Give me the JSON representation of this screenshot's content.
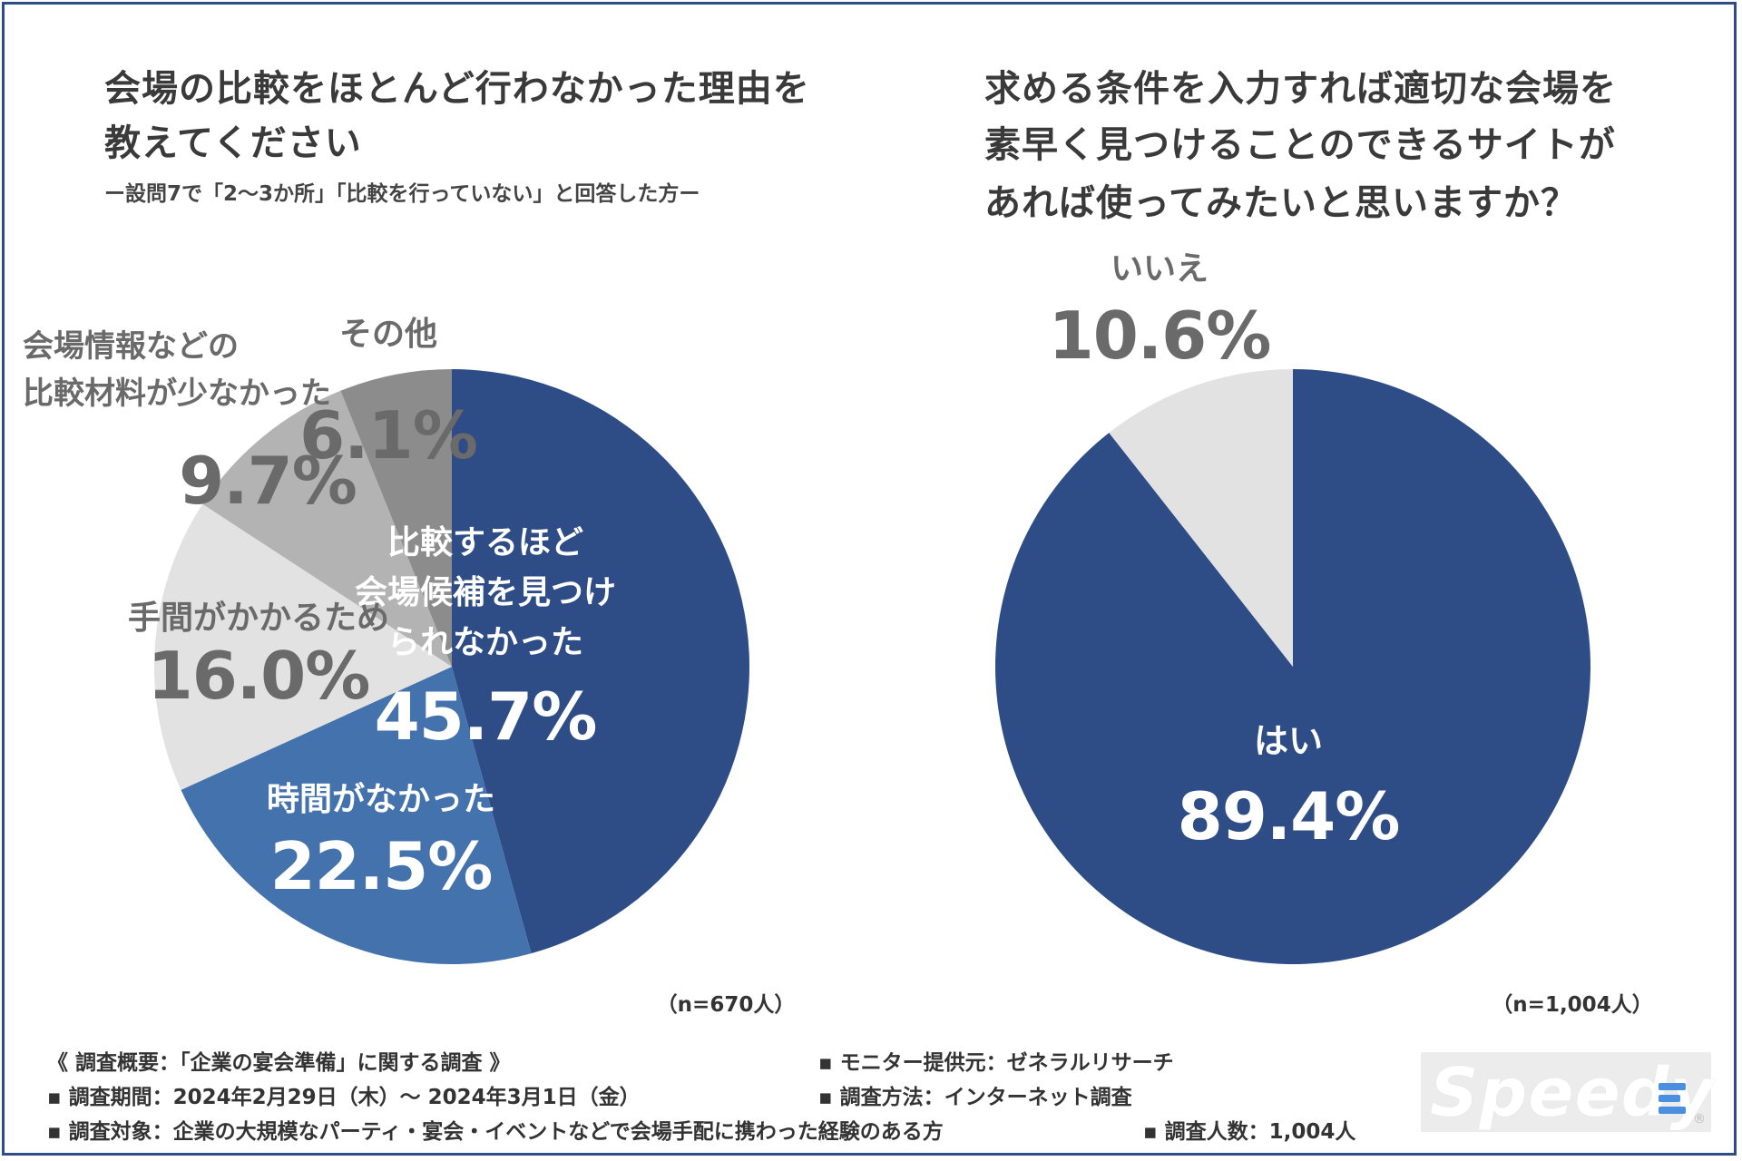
{
  "left": {
    "title_line1": "会場の比較をほとんど行わなかった理由を",
    "title_line2": "教えてください",
    "subtitle": "ー設問7で「2〜3か所」「比較を行っていない」と回答した方ー",
    "n_label": "（n=670人）"
  },
  "right": {
    "title_line1": "求める条件を入力すれば適切な会場を",
    "title_line2": "素早く見つけることのできるサイトが",
    "title_line3": "あれば使ってみたいと思いますか？",
    "n_label": "（n=1,004人）"
  },
  "footer": {
    "overview": "《 調査概要：「企業の宴会準備」に関する調査 》",
    "period": "▪ 調査期間：2024年2月29日（木）〜 2024年3月1日（金）",
    "target": "▪ 調査対象：企業の大規模なパーティ・宴会・イベントなどで会場手配に携わった経験のある方",
    "monitor": "▪ モニター提供元：ゼネラルリサーチ",
    "method": "▪ 調査方法：インターネット調査",
    "count": "▪ 調査人数：1,004人"
  },
  "logo": {
    "text": "Speedy",
    "reg": "®"
  },
  "colors": {
    "dark_blue": "#2e4d86",
    "mid_blue": "#4472ad",
    "light_gray": "#e2e2e2",
    "mid_gray": "#b3b3b3",
    "dark_gray": "#8c8c8c",
    "label_gray": "#6a6a6a"
  },
  "chart_data": [
    {
      "type": "pie",
      "title": "会場の比較をほとんど行わなかった理由を教えてください",
      "start": "12 o'clock, clockwise",
      "slices": [
        {
          "label_lines": [
            "比較するほど",
            "会場候補を見つけ",
            "られなかった"
          ],
          "value": 45.7,
          "value_label": "45.7%",
          "color": "#2e4d86",
          "label_color": "#ffffff"
        },
        {
          "label_lines": [
            "時間がなかった"
          ],
          "value": 22.5,
          "value_label": "22.5%",
          "color": "#4472ad",
          "label_color": "#ffffff"
        },
        {
          "label_lines": [
            "手間がかかるため"
          ],
          "value": 16.0,
          "value_label": "16.0%",
          "color": "#e2e2e2",
          "label_color": "#6a6a6a"
        },
        {
          "label_lines": [
            "会場情報などの",
            "比較材料が少なかった"
          ],
          "value": 9.7,
          "value_label": "9.7%",
          "color": "#b3b3b3",
          "label_color": "#6a6a6a"
        },
        {
          "label_lines": [
            "その他"
          ],
          "value": 6.1,
          "value_label": "6.1%",
          "color": "#8c8c8c",
          "label_color": "#6a6a6a"
        }
      ]
    },
    {
      "type": "pie",
      "title": "求める条件を入力すれば適切な会場を素早く見つけることのできるサイトがあれば使ってみたいと思いますか？",
      "start": "12 o'clock, clockwise",
      "slices": [
        {
          "label_lines": [
            "はい"
          ],
          "value": 89.4,
          "value_label": "89.4%",
          "color": "#2e4d86",
          "label_color": "#ffffff"
        },
        {
          "label_lines": [
            "いいえ"
          ],
          "value": 10.6,
          "value_label": "10.6%",
          "color": "#e2e2e2",
          "label_color": "#6a6a6a"
        }
      ]
    }
  ]
}
